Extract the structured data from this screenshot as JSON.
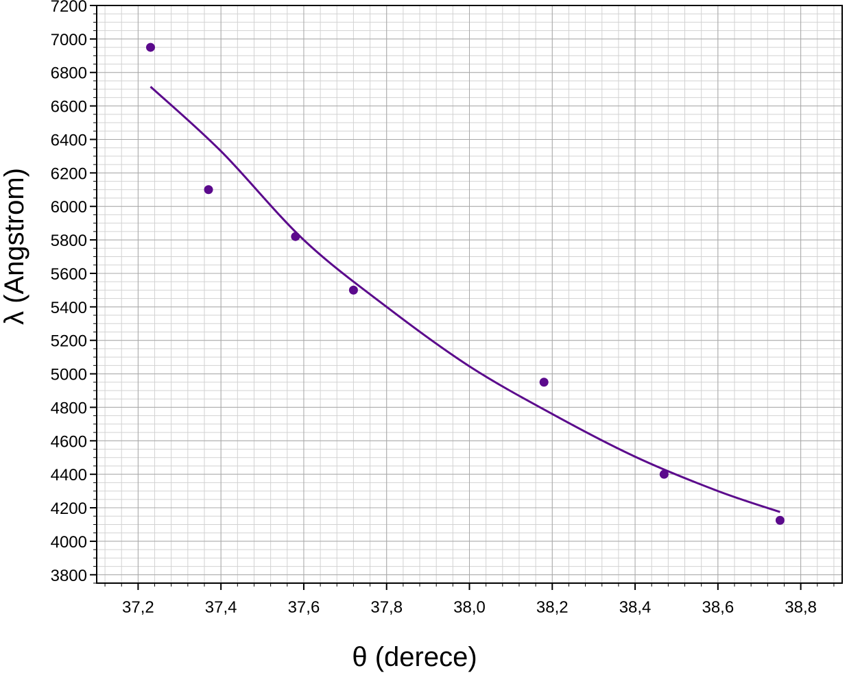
{
  "chart_data": {
    "type": "scatter",
    "xlabel": "θ (derece)",
    "ylabel": "λ (Angstrom)",
    "xlim": [
      37.1,
      38.9
    ],
    "ylim": [
      3750,
      7200
    ],
    "x_ticks": [
      "37,2",
      "37,4",
      "37,6",
      "37,8",
      "38,0",
      "38,2",
      "38,4",
      "38,6",
      "38,8"
    ],
    "y_ticks": [
      "3800",
      "4000",
      "4200",
      "4400",
      "4600",
      "4800",
      "5000",
      "5200",
      "5400",
      "5600",
      "5800",
      "6000",
      "6200",
      "6400",
      "6600",
      "6800",
      "7000",
      "7200"
    ],
    "grid": true,
    "series": [
      {
        "kind": "points",
        "x": [
          37.23,
          37.37,
          37.58,
          37.72,
          38.18,
          38.47,
          38.75
        ],
        "y": [
          6950,
          6100,
          5820,
          5500,
          4950,
          4400,
          4125
        ]
      },
      {
        "kind": "fit-line",
        "x": [
          37.23,
          37.4,
          37.6,
          37.8,
          38.0,
          38.2,
          38.4,
          38.6,
          38.75
        ],
        "y": [
          6715,
          6330,
          5800,
          5400,
          5045,
          4760,
          4505,
          4300,
          4175
        ]
      }
    ],
    "colors": {
      "series": "#5b0a8c",
      "grid_major": "#a8a8a8",
      "grid_minor": "#d2d2d2",
      "axis": "#000000"
    }
  }
}
